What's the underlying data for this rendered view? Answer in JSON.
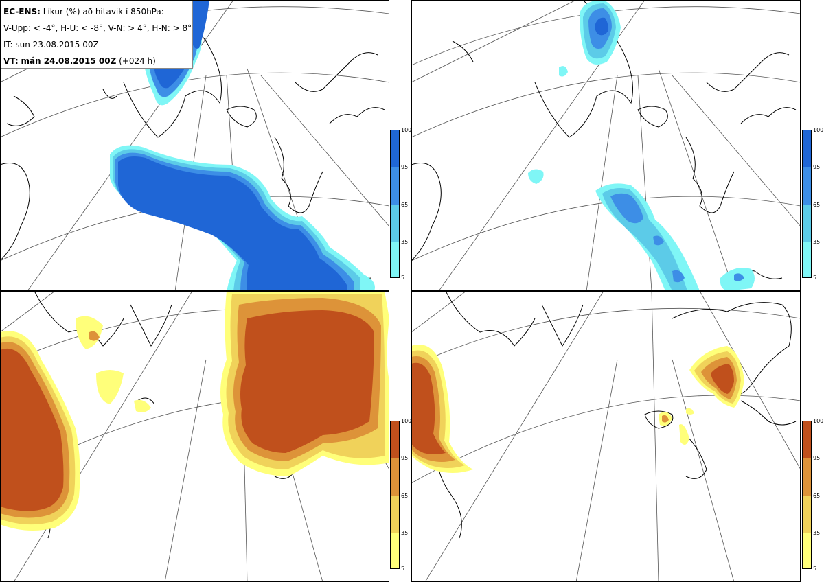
{
  "header": {
    "product": "EC-ENS:",
    "title": "Líkur (%) að hitavik í 850hPa:",
    "thresholds": "V-Upp: < -4°, H-U: < -8°, V-N: > 4°, H-N: > 8°",
    "init_label": "IT: sun 23.08.2015 00Z",
    "valid_prefix": "VT:",
    "valid_time": "mán 24.08.2015 00Z",
    "lead": "(+024 h)"
  },
  "colorbars": {
    "ticks": [
      "100",
      "95",
      "65",
      "35",
      "5"
    ],
    "cold_colors": [
      "#1f66d6",
      "#3d8ee6",
      "#5ccbe8",
      "#7ff6f6"
    ],
    "warm_colors": [
      "#c0501c",
      "#dd9339",
      "#f0d25a",
      "#ffff7a"
    ]
  },
  "panels": [
    {
      "name": "V-Upp",
      "scheme": "cold"
    },
    {
      "name": "H-U",
      "scheme": "cold"
    },
    {
      "name": "V-N",
      "scheme": "warm"
    },
    {
      "name": "H-N",
      "scheme": "warm"
    }
  ]
}
